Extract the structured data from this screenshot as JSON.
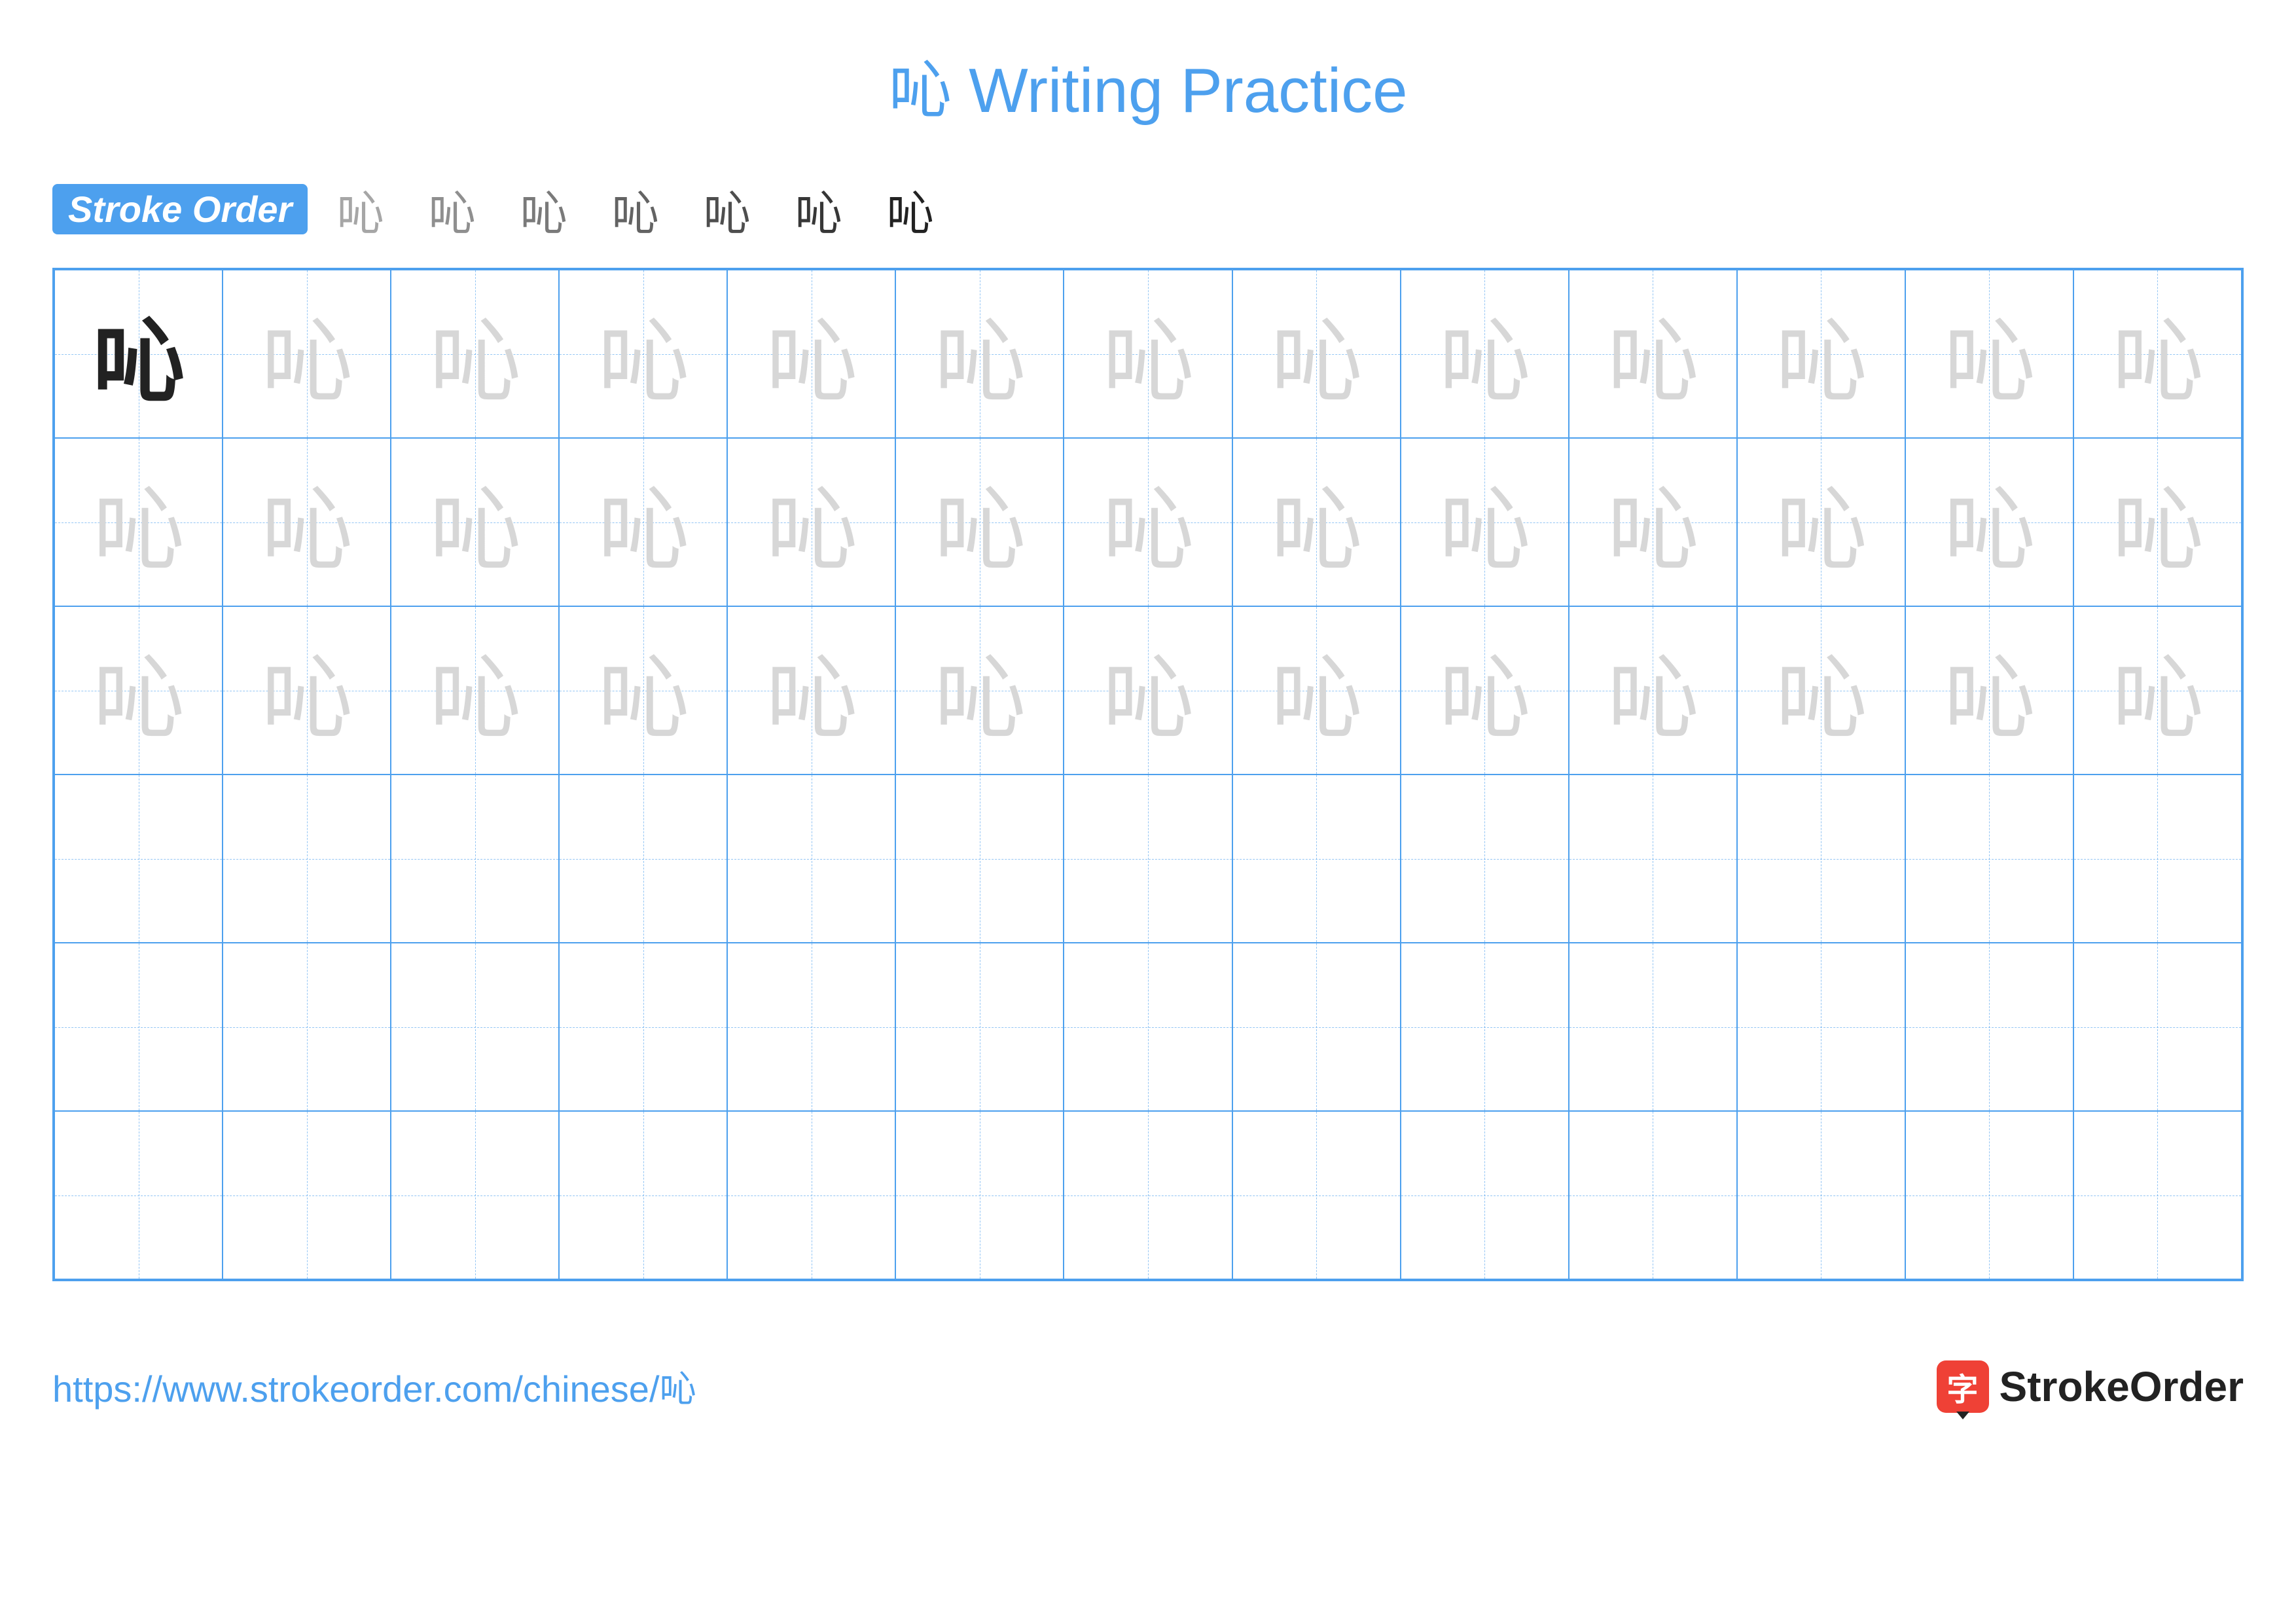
{
  "title_prefix": "吣",
  "title_suffix": " Writing Practice",
  "title_color": "#4da0ee",
  "stroke_order": {
    "label": "Stroke Order",
    "badge_bg": "#4da0ee",
    "badge_fg": "#ffffff",
    "steps_count": 7,
    "step_char": "吣",
    "step_color_done": "#222222",
    "step_color_current": "#d8232a"
  },
  "grid": {
    "rows": 6,
    "cols": 13,
    "border_color": "#4da0ee",
    "guide_color": "#4da0ee",
    "char": "吣",
    "model_color": "#222222",
    "trace_color": "#d7d7d7",
    "trace_rows": 3,
    "cell_font_size": 140
  },
  "footer": {
    "url": "https://www.strokeorder.com/chinese/吣",
    "url_color": "#4da0ee",
    "logo_text": "StrokeOrder",
    "logo_icon_char": "字",
    "logo_icon_bg": "#ef4136"
  }
}
